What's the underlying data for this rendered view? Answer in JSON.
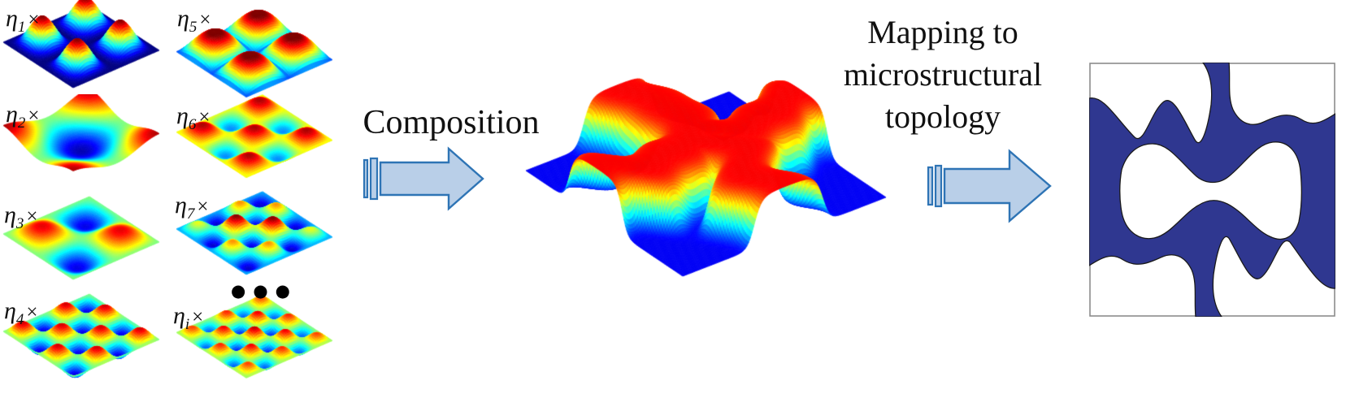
{
  "figure": {
    "type": "process-diagram",
    "description": "Weighted basis surfaces are composed into a combined phase-field surface, then mapped to a microstructural topology",
    "eta_terms": [
      {
        "base": "η",
        "sub": "1",
        "op": "×",
        "pattern": "2x2 round red peaks on flat dark-blue plane",
        "params": {
          "form": "square",
          "f": 2,
          "zmode": "lift",
          "hz": 34
        }
      },
      {
        "base": "η",
        "sub": "2",
        "op": "×",
        "pattern": "red corner peaks with central blue basin on green base",
        "params": {
          "form": "addcos",
          "f": 2,
          "amp": 0.9,
          "zmode": "mid",
          "hz": 15
        }
      },
      {
        "base": "η",
        "sub": "3",
        "op": "×",
        "pattern": "2x2 alternating diagonal peaks and dips",
        "params": {
          "form": "sines",
          "f": 2,
          "a0": 0.8,
          "a1": 0,
          "b0": 0,
          "b1": 0,
          "zmode": "mid",
          "hz": 15
        }
      },
      {
        "base": "η",
        "sub": "4",
        "op": "×",
        "pattern": "4x4 checkerboard of peaks and dips",
        "params": {
          "form": "sines",
          "f": 4,
          "a0": 0.85,
          "a1": 0,
          "b0": 0,
          "b1": 0,
          "zmode": "mid",
          "hz": 14
        }
      },
      {
        "base": "η",
        "sub": "5",
        "op": "×",
        "pattern": "elongated red ridges with cyan grooves",
        "params": {
          "form": "abs",
          "f": 2,
          "amp": 1.7,
          "pow": 0.75,
          "bias": -0.6,
          "zmode": "mid",
          "hz": 16
        }
      },
      {
        "base": "η",
        "sub": "6",
        "op": "×",
        "pattern": "3x3 warm peaks biased high on green base",
        "params": {
          "form": "sines",
          "f": 3,
          "a0": 0.7,
          "a1": 0,
          "b0": 0.22,
          "b1": 0,
          "zmode": "mid",
          "hz": 15
        }
      },
      {
        "base": "η",
        "sub": "7",
        "op": "×",
        "pattern": "center-clustered peaks with deep blue corner dips",
        "params": {
          "form": "sines",
          "f": 4,
          "a0": 0.45,
          "a1": 0.55,
          "b0": -0.42,
          "b1": 0.58,
          "zmode": "mid",
          "hz": 14
        }
      },
      {
        "base": "η",
        "sub": "i",
        "op": "×",
        "pattern": "dense 5x5 field of peaks and dips",
        "params": {
          "form": "sines",
          "f": 5,
          "a0": 0.55,
          "a1": 0.3,
          "b0": 0.05,
          "b1": 0,
          "zmode": "mid",
          "hz": 13
        }
      }
    ],
    "ellipsis": "●●●",
    "arrows": [
      {
        "label": "Composition"
      },
      {
        "label_lines": [
          "Mapping to",
          "microstructural",
          "topology"
        ]
      }
    ],
    "composition_surface": {
      "pattern": "binary plateau: wavy X-shaped red ridge network on flat blue lowland with rainbow cliffs",
      "params": {
        "form": "plateau",
        "zmode": "lift",
        "hz": 62,
        "n": 120,
        "tlo": 0.115,
        "tspan": 0.77
      }
    },
    "microstructure": {
      "description": "2D unit cell: dark-blue connected solid network with top and bottom stems, side bands and a central hourglass-shaped void"
    }
  },
  "colors": {
    "arrow_fill": "#b9cfe8",
    "arrow_stroke": "#2e74b5",
    "microstructure_fill": "#2f3790",
    "microstructure_outline": "#1a1a1a",
    "frame_stroke": "#8c8c8c",
    "text": "#111111",
    "background": "#ffffff"
  }
}
